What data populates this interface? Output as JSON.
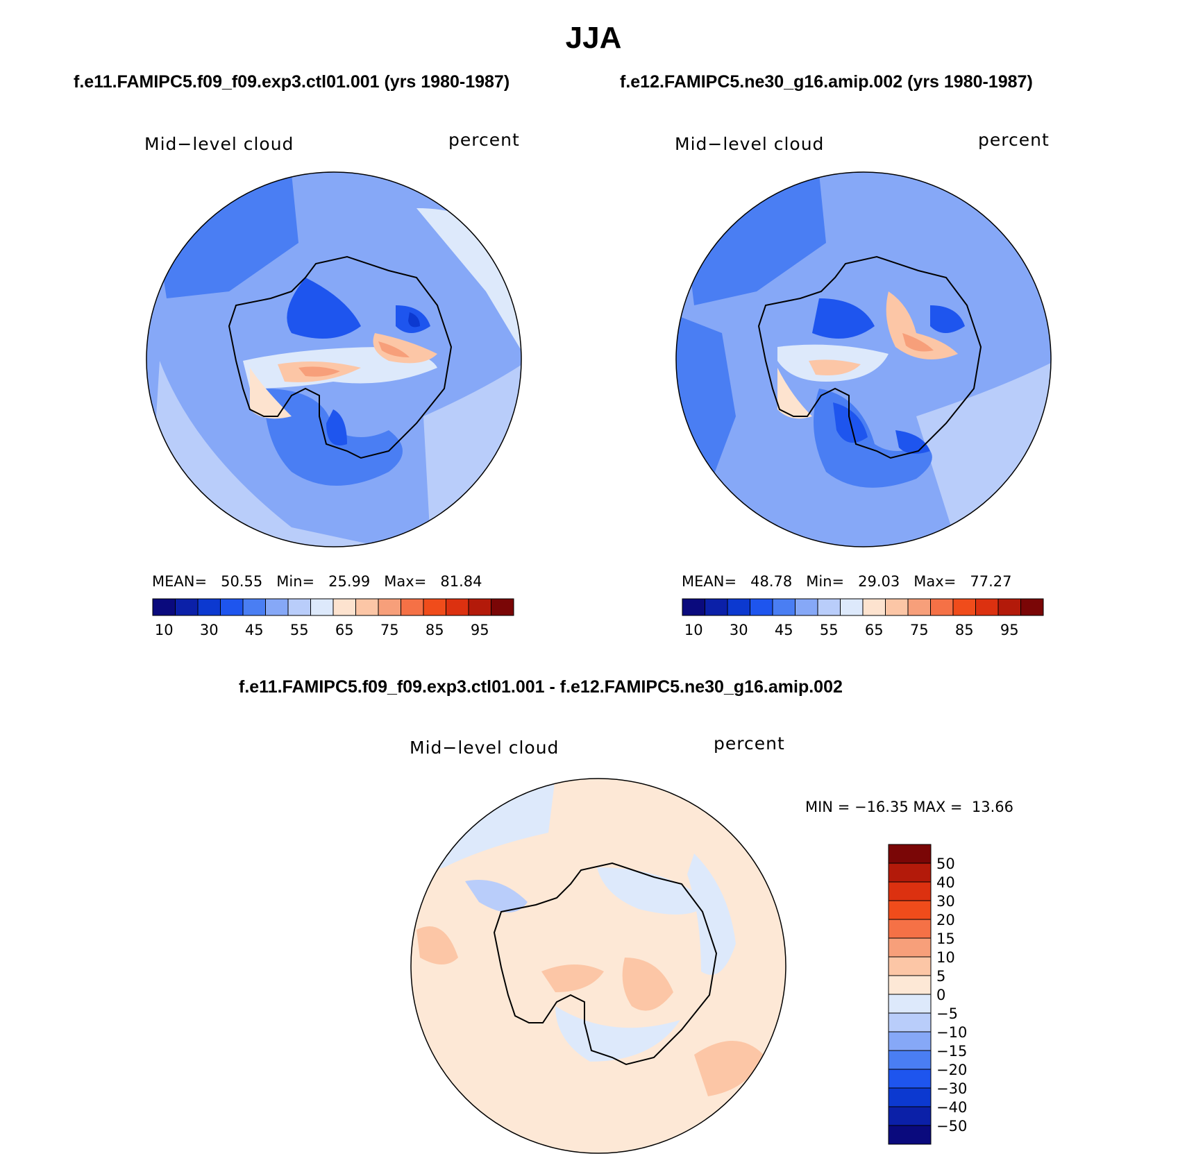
{
  "title": "JJA",
  "case1_title": "f.e11.FAMIPC5.f09_f09.exp3.ctl01.001 (yrs 1980-1987)",
  "case2_title": "f.e12.FAMIPC5.ne30_g16.amip.002 (yrs 1980-1987)",
  "diff_title": "f.e11.FAMIPC5.f09_f09.exp3.ctl01.001 - f.e12.FAMIPC5.ne30_g16.amip.002",
  "panels": [
    {
      "variable": "Mid−level cloud",
      "units": "percent",
      "mean_label": "MEAN=",
      "mean": "50.55",
      "min_label": "Min=",
      "min": "25.99",
      "max_label": "Max=",
      "max": "81.84"
    },
    {
      "variable": "Mid−level cloud",
      "units": "percent",
      "mean_label": "MEAN=",
      "mean": "48.78",
      "min_label": "Min=",
      "min": "29.03",
      "max_label": "Max=",
      "max": "77.27"
    },
    {
      "variable": "Mid−level cloud",
      "units": "percent",
      "minmax_text": "MIN = −16.35 MAX =  13.66"
    }
  ],
  "chart_data": [
    {
      "type": "heatmap",
      "projection": "south-polar-stereographic",
      "title": "f.e11.FAMIPC5.f09_f09.exp3.ctl01.001 (yrs 1980-1987)",
      "variable": "Mid-level cloud",
      "units": "percent",
      "stats": {
        "mean": 50.55,
        "min": 25.99,
        "max": 81.84
      },
      "colorbar": {
        "orientation": "horizontal",
        "tick_labels": [
          "10",
          "30",
          "45",
          "55",
          "65",
          "75",
          "85",
          "95"
        ],
        "colors": [
          "#0a0a7d",
          "#0b20a8",
          "#0c39d0",
          "#1e55ee",
          "#4a7ef3",
          "#86a8f7",
          "#b9cdfa",
          "#dde9fb",
          "#fde3cf",
          "#fcc6a6",
          "#f79f7a",
          "#f57146",
          "#f04c1b",
          "#dc3110",
          "#b31a0a",
          "#7a0606"
        ]
      }
    },
    {
      "type": "heatmap",
      "projection": "south-polar-stereographic",
      "title": "f.e12.FAMIPC5.ne30_g16.amip.002 (yrs 1980-1987)",
      "variable": "Mid-level cloud",
      "units": "percent",
      "stats": {
        "mean": 48.78,
        "min": 29.03,
        "max": 77.27
      },
      "colorbar": {
        "orientation": "horizontal",
        "tick_labels": [
          "10",
          "30",
          "45",
          "55",
          "65",
          "75",
          "85",
          "95"
        ],
        "colors": [
          "#0a0a7d",
          "#0b20a8",
          "#0c39d0",
          "#1e55ee",
          "#4a7ef3",
          "#86a8f7",
          "#b9cdfa",
          "#dde9fb",
          "#fde3cf",
          "#fcc6a6",
          "#f79f7a",
          "#f57146",
          "#f04c1b",
          "#dc3110",
          "#b31a0a",
          "#7a0606"
        ]
      }
    },
    {
      "type": "heatmap",
      "projection": "south-polar-stereographic",
      "title": "f.e11.FAMIPC5.f09_f09.exp3.ctl01.001 - f.e12.FAMIPC5.ne30_g16.amip.002",
      "variable": "Mid-level cloud",
      "units": "percent",
      "stats": {
        "min": -16.35,
        "max": 13.66
      },
      "colorbar": {
        "orientation": "vertical",
        "tick_labels": [
          "50",
          "40",
          "30",
          "20",
          "15",
          "10",
          "5",
          "0",
          "−5",
          "−10",
          "−15",
          "−20",
          "−30",
          "−40",
          "−50"
        ],
        "colors": [
          "#7a0606",
          "#b31a0a",
          "#dc3110",
          "#f04c1b",
          "#f57146",
          "#f79f7a",
          "#fcc6a6",
          "#fde8d6",
          "#dde9fb",
          "#b9cdfa",
          "#86a8f7",
          "#4a7ef3",
          "#1e55ee",
          "#0c39d0",
          "#0b20a8",
          "#0a0a7d"
        ]
      }
    }
  ]
}
